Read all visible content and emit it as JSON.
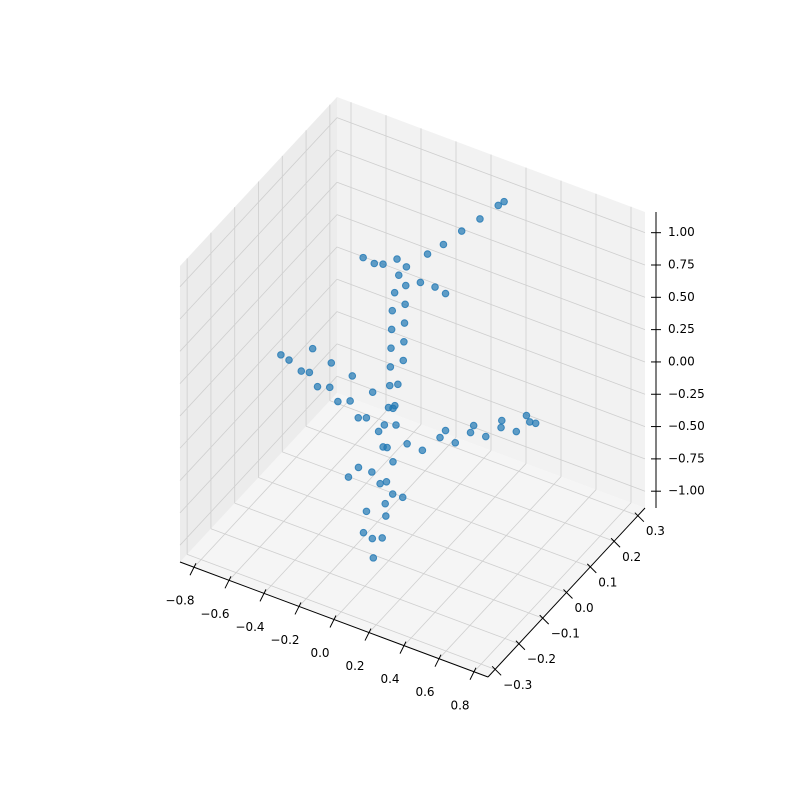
{
  "chart_data": {
    "type": "scatter3d",
    "series": [
      {
        "color": "#1f77b4",
        "x": [
          -0.02,
          -0.08,
          -0.01,
          -0.09,
          -0.03,
          -0.1,
          -0.02,
          -0.09,
          -0.04,
          -0.11,
          -0.03,
          -0.1,
          -0.05,
          -0.12,
          -0.04,
          -0.11,
          -0.06,
          -0.13,
          -0.07,
          -0.14,
          -0.08,
          -0.15,
          -0.09,
          -0.16,
          -0.1,
          -0.17,
          -0.11,
          -0.17,
          -0.12,
          -0.16,
          -0.13,
          -0.17,
          -0.18,
          -0.25,
          -0.31,
          -0.37,
          -0.44,
          -0.5,
          -0.57,
          -0.63,
          -0.69,
          -0.76,
          -0.82,
          -0.22,
          -0.35,
          -0.48,
          -0.6,
          -0.72,
          0.01,
          0.07,
          0.13,
          0.19,
          0.25,
          0.31,
          0.37,
          0.43,
          0.48,
          0.5,
          0.08,
          0.2,
          0.32,
          0.42,
          0.05,
          0.08,
          -0.2,
          -0.23,
          -0.35,
          -0.3,
          -0.25,
          -0.05,
          0.02,
          0.08,
          -0.05,
          0.0,
          0.05,
          0.1,
          0.15,
          0.17
        ],
        "y": [
          -0.15,
          -0.11,
          -0.12,
          -0.14,
          -0.09,
          -0.12,
          -0.1,
          -0.07,
          -0.08,
          -0.09,
          -0.06,
          -0.05,
          -0.07,
          -0.03,
          -0.04,
          -0.02,
          -0.03,
          0.0,
          -0.01,
          0.01,
          0.02,
          0.02,
          0.03,
          0.03,
          0.04,
          0.04,
          0.05,
          0.05,
          0.06,
          0.06,
          0.07,
          0.06,
          -0.01,
          -0.01,
          0.0,
          0.01,
          0.01,
          0.02,
          0.02,
          0.03,
          0.04,
          0.04,
          0.05,
          0.08,
          0.09,
          0.1,
          0.1,
          0.11,
          -0.03,
          -0.01,
          0.02,
          0.04,
          0.06,
          0.08,
          0.1,
          0.12,
          0.14,
          0.15,
          0.08,
          0.11,
          0.14,
          0.17,
          -0.12,
          -0.1,
          -0.08,
          -0.1,
          0.05,
          0.06,
          0.06,
          0.07,
          0.08,
          0.08,
          0.1,
          0.13,
          0.17,
          0.21,
          0.25,
          0.26
        ],
        "z": [
          -1.02,
          -0.98,
          -0.92,
          -0.88,
          -0.82,
          -0.76,
          -0.7,
          -0.64,
          -0.58,
          -0.52,
          -0.46,
          -0.4,
          -0.34,
          -0.28,
          -0.22,
          -0.16,
          -0.1,
          -0.04,
          0.02,
          0.08,
          0.14,
          0.2,
          0.26,
          0.32,
          0.38,
          0.44,
          0.5,
          0.56,
          0.62,
          0.68,
          0.74,
          0.8,
          -0.4,
          -0.33,
          -0.38,
          -0.3,
          -0.34,
          -0.28,
          -0.31,
          -0.25,
          -0.29,
          -0.24,
          -0.25,
          -0.42,
          -0.38,
          -0.34,
          -0.3,
          -0.27,
          -0.36,
          -0.42,
          -0.35,
          -0.4,
          -0.33,
          -0.37,
          -0.31,
          -0.35,
          -0.29,
          -0.31,
          -0.44,
          -0.4,
          -0.36,
          -0.33,
          -0.55,
          -0.6,
          -0.55,
          -0.6,
          0.74,
          0.7,
          0.72,
          0.66,
          0.64,
          0.62,
          0.82,
          0.86,
          0.91,
          0.95,
          1.0,
          1.02
        ]
      }
    ],
    "xlim": [
      -0.88,
      0.88
    ],
    "ylim": [
      -0.33,
      0.33
    ],
    "zlim": [
      -1.13,
      1.16
    ],
    "xticks": [
      {
        "value": -0.8,
        "label": "−0.8"
      },
      {
        "value": -0.6,
        "label": "−0.6"
      },
      {
        "value": -0.4,
        "label": "−0.4"
      },
      {
        "value": -0.2,
        "label": "−0.2"
      },
      {
        "value": 0,
        "label": "0.0"
      },
      0.2,
      0.4,
      0.6,
      0.8
    ],
    "yticks": [
      {
        "value": -0.3,
        "label": "−0.3"
      },
      {
        "value": -0.2,
        "label": "−0.2"
      },
      {
        "value": -0.1,
        "label": "−0.1"
      },
      {
        "value": 0,
        "label": "0.0"
      },
      0.1,
      0.2,
      0.3
    ],
    "zticks": [
      {
        "value": -1,
        "label": "−1.00"
      },
      {
        "value": -0.75,
        "label": "−0.75"
      },
      {
        "value": -0.5,
        "label": "−0.50"
      },
      {
        "value": -0.25,
        "label": "−0.25"
      },
      {
        "value": 0,
        "label": "0.00"
      },
      0.25,
      {
        "value": 0.5,
        "label": "0.50"
      },
      0.75,
      {
        "value": 1,
        "label": "1.00"
      }
    ],
    "grid": true
  }
}
